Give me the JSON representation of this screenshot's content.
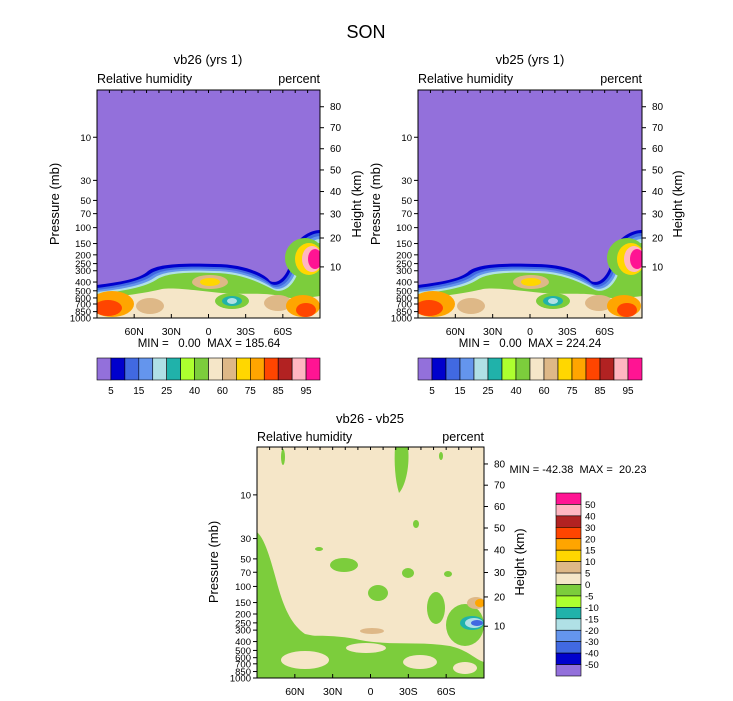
{
  "title": "SON",
  "chart_data": [
    {
      "type": "heatmap",
      "title": "vb26 (yrs 1)",
      "left_label": "Relative humidity",
      "right_label": "percent",
      "ylabel": "Pressure (mb)",
      "ylabel_right": "Height (km)",
      "x_ticks": [
        "60N",
        "30N",
        "0",
        "30S",
        "60S"
      ],
      "y_ticks_pressure": [
        "10",
        "30",
        "50",
        "70",
        "100",
        "150",
        "200",
        "250",
        "300",
        "400",
        "500",
        "600",
        "700",
        "850",
        "1000"
      ],
      "y_ticks_height": [
        "10",
        "20",
        "30",
        "40",
        "50",
        "60",
        "70",
        "80"
      ],
      "stats": "MIN =   0.00  MAX = 185.64",
      "colorbar": {
        "levels": [
          "5",
          "10",
          "15",
          "20",
          "25",
          "30",
          "40",
          "50",
          "60",
          "70",
          "75",
          "80",
          "85",
          "90",
          "95"
        ],
        "tick_labels": [
          "5",
          "15",
          "25",
          "40",
          "60",
          "75",
          "85",
          "95"
        ],
        "colors": [
          "#9370DB",
          "#0000CD",
          "#4169E1",
          "#6495ED",
          "#B0E0E6",
          "#20B2AA",
          "#ADFF2F",
          "#7CCD3C",
          "#F5E6C8",
          "#DEB887",
          "#FFD700",
          "#FFA500",
          "#FF4500",
          "#B22222",
          "#FFB6C1",
          "#FF1493"
        ]
      }
    },
    {
      "type": "heatmap",
      "title": "vb25 (yrs 1)",
      "left_label": "Relative humidity",
      "right_label": "percent",
      "ylabel": "Pressure (mb)",
      "ylabel_right": "Height (km)",
      "x_ticks": [
        "60N",
        "30N",
        "0",
        "30S",
        "60S"
      ],
      "y_ticks_pressure": [
        "10",
        "30",
        "50",
        "70",
        "100",
        "150",
        "200",
        "250",
        "300",
        "400",
        "500",
        "600",
        "700",
        "850",
        "1000"
      ],
      "y_ticks_height": [
        "10",
        "20",
        "30",
        "40",
        "50",
        "60",
        "70",
        "80"
      ],
      "stats": "MIN =   0.00  MAX = 224.24",
      "colorbar": {
        "levels": [
          "5",
          "10",
          "15",
          "20",
          "25",
          "30",
          "40",
          "50",
          "60",
          "70",
          "75",
          "80",
          "85",
          "90",
          "95"
        ],
        "tick_labels": [
          "5",
          "15",
          "25",
          "40",
          "60",
          "75",
          "85",
          "95"
        ],
        "colors": [
          "#9370DB",
          "#0000CD",
          "#4169E1",
          "#6495ED",
          "#B0E0E6",
          "#20B2AA",
          "#ADFF2F",
          "#7CCD3C",
          "#F5E6C8",
          "#DEB887",
          "#FFD700",
          "#FFA500",
          "#FF4500",
          "#B22222",
          "#FFB6C1",
          "#FF1493"
        ]
      }
    },
    {
      "type": "heatmap",
      "title": "vb26 - vb25",
      "left_label": "Relative humidity",
      "right_label": "percent",
      "ylabel": "Pressure (mb)",
      "ylabel_right": "Height (km)",
      "x_ticks": [
        "60N",
        "30N",
        "0",
        "30S",
        "60S"
      ],
      "y_ticks_pressure": [
        "10",
        "30",
        "50",
        "70",
        "100",
        "150",
        "200",
        "250",
        "300",
        "400",
        "500",
        "600",
        "700",
        "850",
        "1000"
      ],
      "y_ticks_height": [
        "10",
        "20",
        "30",
        "40",
        "50",
        "60",
        "70",
        "80"
      ],
      "stats": "MIN = -42.38  MAX =  20.23",
      "colorbar": {
        "levels": [
          "50",
          "40",
          "30",
          "20",
          "15",
          "10",
          "5",
          "0",
          "-5",
          "-10",
          "-15",
          "-20",
          "-30",
          "-40",
          "-50"
        ],
        "colors": [
          "#FF1493",
          "#FFB6C1",
          "#B22222",
          "#FF4500",
          "#FFA500",
          "#FFD700",
          "#DEB887",
          "#F5E6C8",
          "#7CCD3C",
          "#ADFF2F",
          "#20B2AA",
          "#B0E0E6",
          "#6495ED",
          "#4169E1",
          "#0000CD",
          "#9370DB"
        ]
      }
    }
  ]
}
